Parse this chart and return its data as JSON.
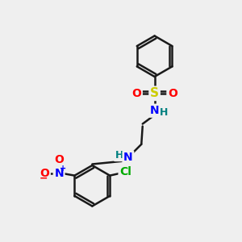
{
  "background_color": "#efefef",
  "bond_color": "#1a1a1a",
  "bond_width": 1.8,
  "atom_colors": {
    "S": "#cccc00",
    "O": "#ff0000",
    "N": "#0000ff",
    "H_sulfonamide": "#008080",
    "H_amine": "#008080",
    "Cl": "#00aa00",
    "C": "#1a1a1a"
  },
  "figsize": [
    3.0,
    3.0
  ],
  "dpi": 100
}
